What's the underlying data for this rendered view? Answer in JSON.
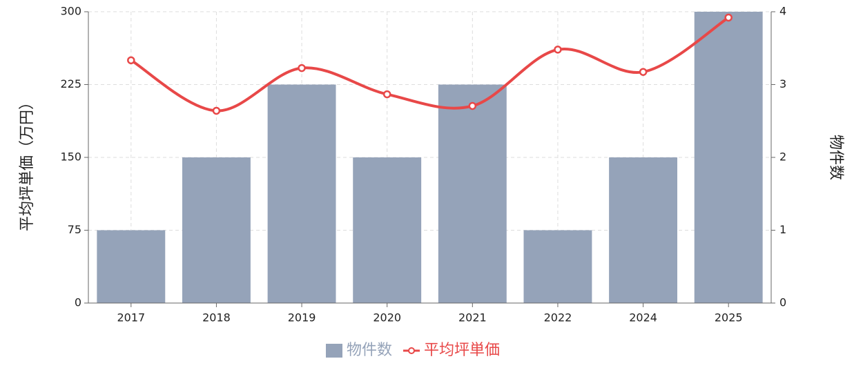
{
  "chart_data": {
    "type": "bar",
    "categories": [
      "2017",
      "2018",
      "2019",
      "2020",
      "2021",
      "2022",
      "2024",
      "2025"
    ],
    "series": [
      {
        "name": "物件数",
        "type": "bar",
        "axis": "y2",
        "color": "#95a3b9",
        "values": [
          1,
          2,
          3,
          2,
          3,
          1,
          2,
          4
        ]
      },
      {
        "name": "平均坪単価",
        "type": "line",
        "color": "#e84848",
        "values": [
          250,
          198,
          242,
          215,
          203,
          261,
          238,
          294
        ]
      }
    ],
    "y_label": "平均坪単価（万円）",
    "y2_label": "物件数",
    "ylim": [
      0,
      300
    ],
    "yticks": [
      0,
      75,
      150,
      225,
      300
    ],
    "y2lim": [
      0,
      4
    ],
    "y2ticks": [
      0,
      1,
      2,
      3,
      4
    ],
    "grid": true,
    "legend": "bottom"
  }
}
